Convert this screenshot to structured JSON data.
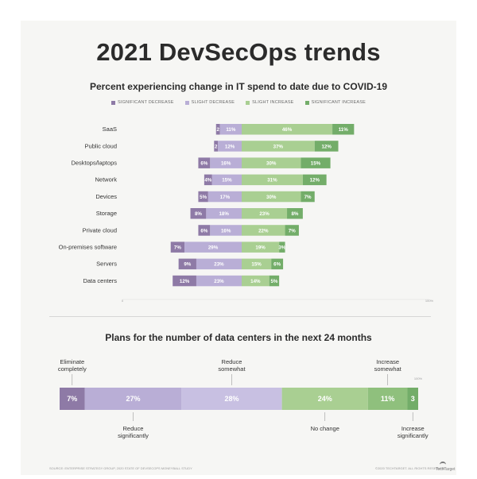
{
  "page": {
    "title": "2021 DevSecOps trends",
    "footer_source": "SOURCE: ENTERPRISE STRATEGY GROUP, 2020 STATE OF DEVSECOPS MONEYBALL STUDY",
    "footer_copyright": "©2020 TECHTARGET. ALL RIGHTS RESERVED",
    "logo_text": "TechTarget"
  },
  "chart_data": [
    {
      "type": "bar",
      "stacked": "diverging",
      "orientation": "horizontal",
      "title": "Percent experiencing change in IT spend to date due to COVID-19",
      "legend": [
        "SIGNIFICANT DECREASE",
        "SLIGHT DECREASE",
        "SLIGHT INCREASE",
        "SIGNIFICANT INCREASE"
      ],
      "legend_placement": "top",
      "categories": [
        "SaaS",
        "Public cloud",
        "Desktops/laptops",
        "Network",
        "Devices",
        "Storage",
        "Private cloud",
        "On-premises software",
        "Servers",
        "Data centers"
      ],
      "series": [
        {
          "name": "SIGNIFICANT DECREASE",
          "color": "#8e7aa6",
          "values": [
            2,
            2,
            6,
            4,
            5,
            8,
            6,
            7,
            9,
            12
          ]
        },
        {
          "name": "SLIGHT DECREASE",
          "color": "#b9aed6",
          "values": [
            11,
            12,
            16,
            15,
            17,
            18,
            16,
            29,
            23,
            23
          ]
        },
        {
          "name": "SLIGHT INCREASE",
          "color": "#a9cf92",
          "values": [
            46,
            37,
            30,
            31,
            30,
            23,
            22,
            19,
            15,
            14
          ]
        },
        {
          "name": "SIGNIFICANT INCREASE",
          "color": "#73ad69",
          "values": [
            11,
            12,
            15,
            12,
            7,
            8,
            7,
            3,
            6,
            5
          ]
        }
      ],
      "value_suffix": "%",
      "axis_ticks": [
        "0",
        "100%"
      ]
    },
    {
      "type": "bar",
      "stacked": "100%",
      "orientation": "horizontal",
      "title": "Plans for the number of data centers in the next 24 months",
      "segments": [
        {
          "label": "Eliminate completely",
          "value": 7,
          "display": "7%",
          "color": "#8e7aa6"
        },
        {
          "label": "Reduce significantly",
          "value": 27,
          "display": "27%",
          "color": "#b9aed6"
        },
        {
          "label": "Reduce somewhat",
          "value": 28,
          "display": "28%",
          "color": "#c8c0e2"
        },
        {
          "label": "No change",
          "value": 24,
          "display": "24%",
          "color": "#a9cf92"
        },
        {
          "label": "Increase somewhat",
          "value": 11,
          "display": "11%",
          "color": "#8fc07d"
        },
        {
          "label": "Increase significantly",
          "value": 3,
          "display": "3",
          "color": "#73ad69"
        }
      ],
      "axis_ticks": [
        "100%"
      ]
    }
  ]
}
